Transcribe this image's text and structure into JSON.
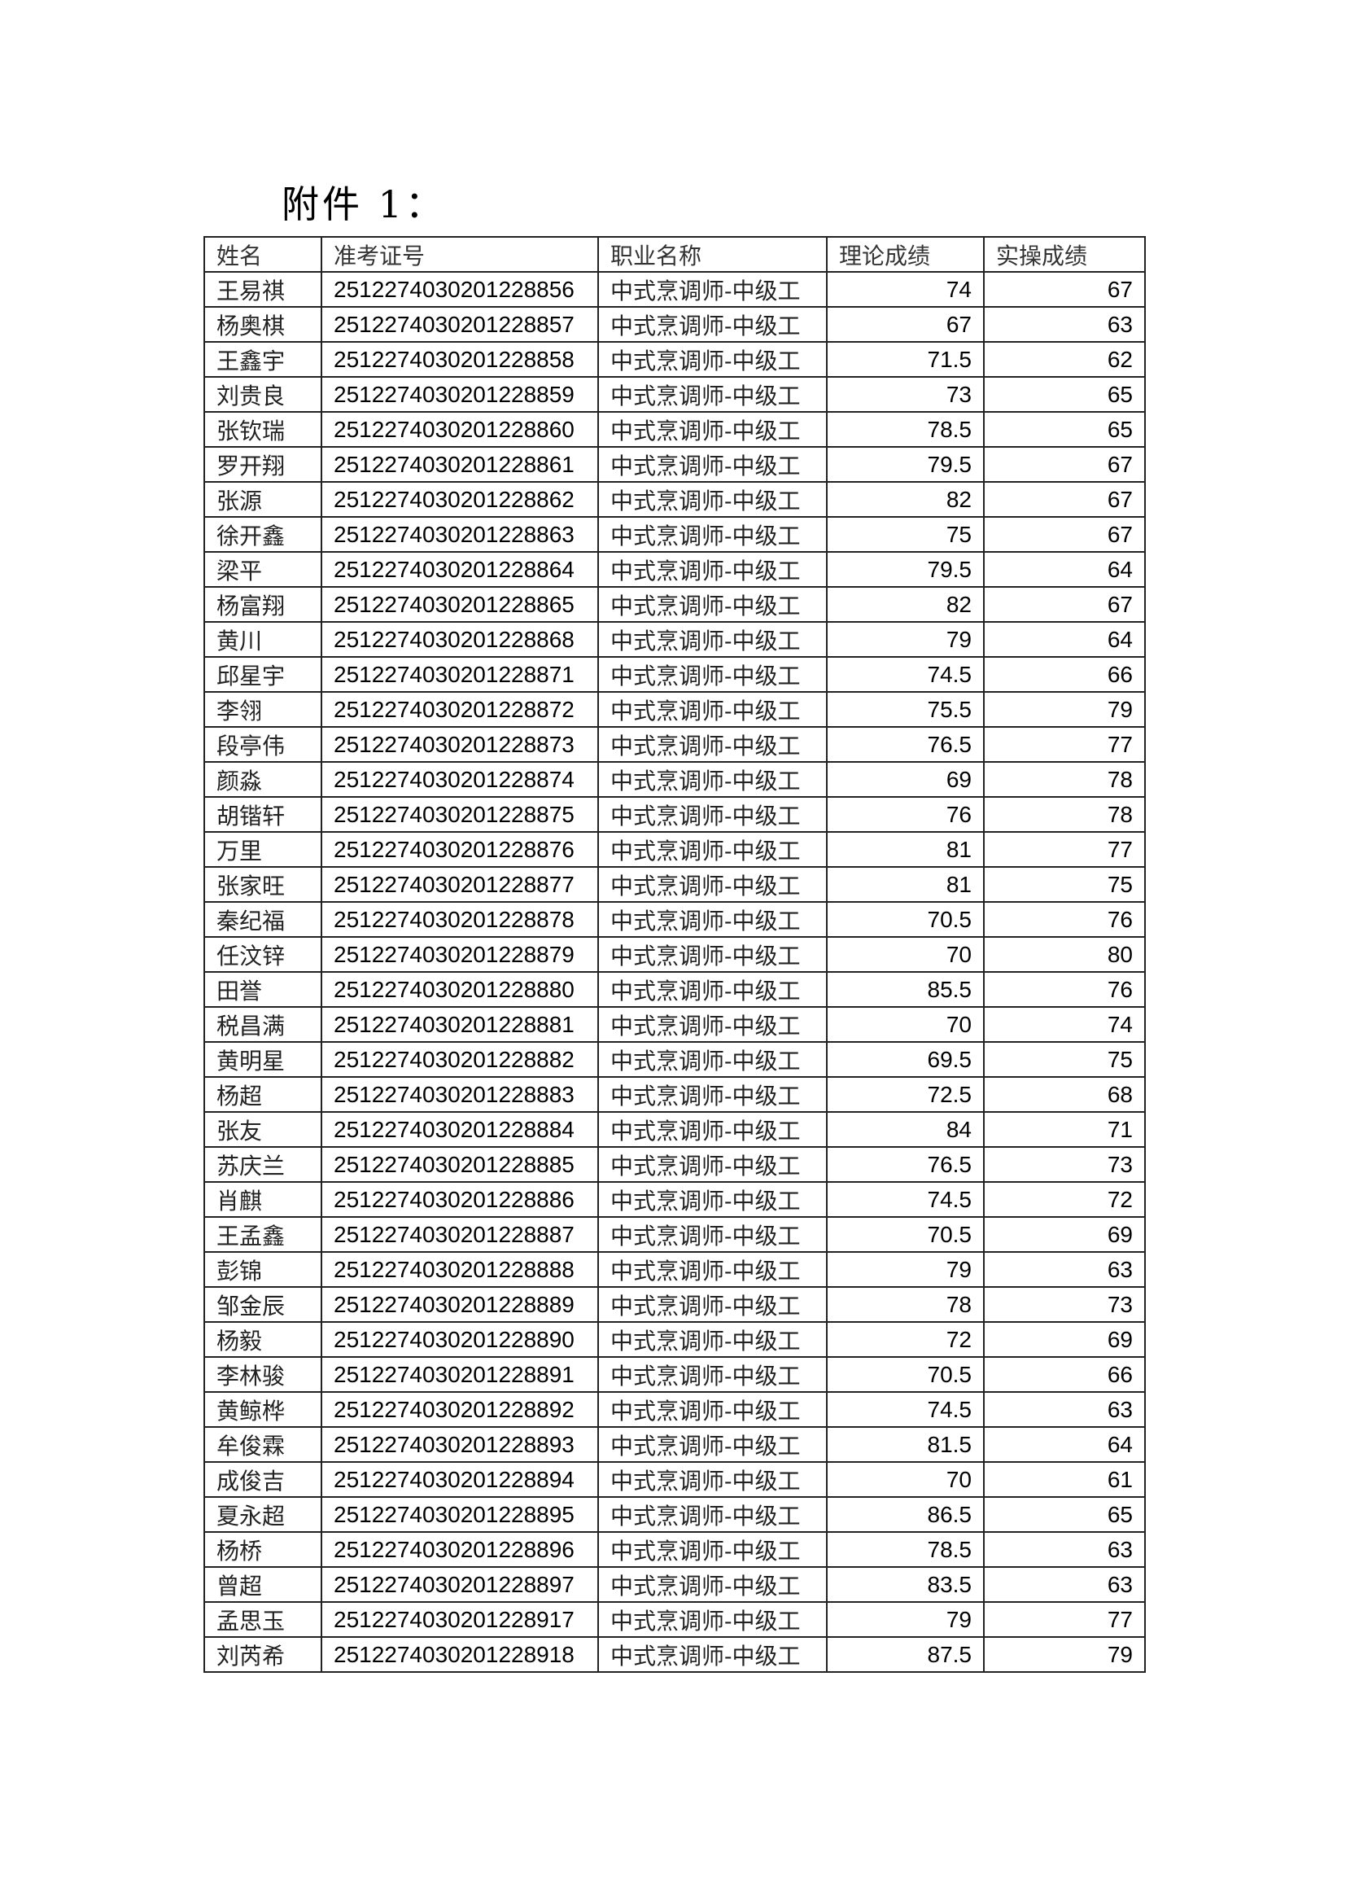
{
  "title": "附件 1：",
  "table": {
    "headers": [
      "姓名",
      "准考证号",
      "职业名称",
      "理论成绩",
      "实操成绩"
    ],
    "rows": [
      [
        "王易祺",
        "2512274030201228856",
        "中式烹调师-中级工",
        "74",
        "67"
      ],
      [
        "杨奥棋",
        "2512274030201228857",
        "中式烹调师-中级工",
        "67",
        "63"
      ],
      [
        "王鑫宇",
        "2512274030201228858",
        "中式烹调师-中级工",
        "71.5",
        "62"
      ],
      [
        "刘贵良",
        "2512274030201228859",
        "中式烹调师-中级工",
        "73",
        "65"
      ],
      [
        "张钦瑞",
        "2512274030201228860",
        "中式烹调师-中级工",
        "78.5",
        "65"
      ],
      [
        "罗开翔",
        "2512274030201228861",
        "中式烹调师-中级工",
        "79.5",
        "67"
      ],
      [
        "张源",
        "2512274030201228862",
        "中式烹调师-中级工",
        "82",
        "67"
      ],
      [
        "徐开鑫",
        "2512274030201228863",
        "中式烹调师-中级工",
        "75",
        "67"
      ],
      [
        "梁平",
        "2512274030201228864",
        "中式烹调师-中级工",
        "79.5",
        "64"
      ],
      [
        "杨富翔",
        "2512274030201228865",
        "中式烹调师-中级工",
        "82",
        "67"
      ],
      [
        "黄川",
        "2512274030201228868",
        "中式烹调师-中级工",
        "79",
        "64"
      ],
      [
        "邱星宇",
        "2512274030201228871",
        "中式烹调师-中级工",
        "74.5",
        "66"
      ],
      [
        "李翎",
        "2512274030201228872",
        "中式烹调师-中级工",
        "75.5",
        "79"
      ],
      [
        "段亭伟",
        "2512274030201228873",
        "中式烹调师-中级工",
        "76.5",
        "77"
      ],
      [
        "颜淼",
        "2512274030201228874",
        "中式烹调师-中级工",
        "69",
        "78"
      ],
      [
        "胡锴轩",
        "2512274030201228875",
        "中式烹调师-中级工",
        "76",
        "78"
      ],
      [
        "万里",
        "2512274030201228876",
        "中式烹调师-中级工",
        "81",
        "77"
      ],
      [
        "张家旺",
        "2512274030201228877",
        "中式烹调师-中级工",
        "81",
        "75"
      ],
      [
        "秦纪福",
        "2512274030201228878",
        "中式烹调师-中级工",
        "70.5",
        "76"
      ],
      [
        "任汶锌",
        "2512274030201228879",
        "中式烹调师-中级工",
        "70",
        "80"
      ],
      [
        "田誉",
        "2512274030201228880",
        "中式烹调师-中级工",
        "85.5",
        "76"
      ],
      [
        "税昌满",
        "2512274030201228881",
        "中式烹调师-中级工",
        "70",
        "74"
      ],
      [
        "黄明星",
        "2512274030201228882",
        "中式烹调师-中级工",
        "69.5",
        "75"
      ],
      [
        "杨超",
        "2512274030201228883",
        "中式烹调师-中级工",
        "72.5",
        "68"
      ],
      [
        "张友",
        "2512274030201228884",
        "中式烹调师-中级工",
        "84",
        "71"
      ],
      [
        "苏庆兰",
        "2512274030201228885",
        "中式烹调师-中级工",
        "76.5",
        "73"
      ],
      [
        "肖麒",
        "2512274030201228886",
        "中式烹调师-中级工",
        "74.5",
        "72"
      ],
      [
        "王孟鑫",
        "2512274030201228887",
        "中式烹调师-中级工",
        "70.5",
        "69"
      ],
      [
        "彭锦",
        "2512274030201228888",
        "中式烹调师-中级工",
        "79",
        "63"
      ],
      [
        "邹金辰",
        "2512274030201228889",
        "中式烹调师-中级工",
        "78",
        "73"
      ],
      [
        "杨毅",
        "2512274030201228890",
        "中式烹调师-中级工",
        "72",
        "69"
      ],
      [
        "李林骏",
        "2512274030201228891",
        "中式烹调师-中级工",
        "70.5",
        "66"
      ],
      [
        "黄鲸桦",
        "2512274030201228892",
        "中式烹调师-中级工",
        "74.5",
        "63"
      ],
      [
        "牟俊霖",
        "2512274030201228893",
        "中式烹调师-中级工",
        "81.5",
        "64"
      ],
      [
        "成俊吉",
        "2512274030201228894",
        "中式烹调师-中级工",
        "70",
        "61"
      ],
      [
        "夏永超",
        "2512274030201228895",
        "中式烹调师-中级工",
        "86.5",
        "65"
      ],
      [
        "杨桥",
        "2512274030201228896",
        "中式烹调师-中级工",
        "78.5",
        "63"
      ],
      [
        "曾超",
        "2512274030201228897",
        "中式烹调师-中级工",
        "83.5",
        "63"
      ],
      [
        "孟思玉",
        "2512274030201228917",
        "中式烹调师-中级工",
        "79",
        "77"
      ],
      [
        "刘芮希",
        "2512274030201228918",
        "中式烹调师-中级工",
        "87.5",
        "79"
      ]
    ]
  }
}
